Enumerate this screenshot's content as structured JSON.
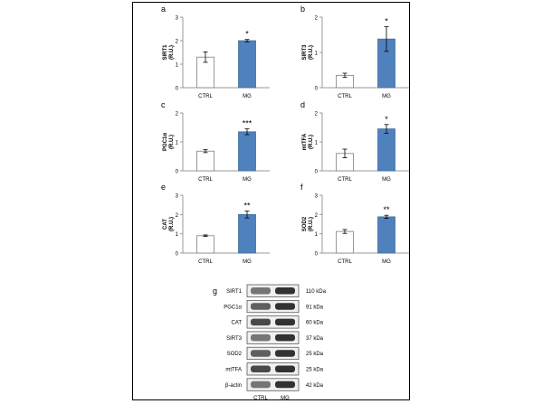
{
  "chart_data": [
    {
      "panel": "a",
      "type": "bar",
      "categories": [
        "CTRL",
        "MG"
      ],
      "values": [
        1.3,
        2.0
      ],
      "errors": [
        0.22,
        0.05
      ],
      "significance": [
        "",
        "*"
      ],
      "ylabel": "SIRT1\n(R.U.)",
      "ylim": [
        0,
        3
      ],
      "yticks": [
        0,
        1,
        2,
        3
      ]
    },
    {
      "panel": "b",
      "type": "bar",
      "categories": [
        "CTRL",
        "MG"
      ],
      "values": [
        0.35,
        1.38
      ],
      "errors": [
        0.06,
        0.35
      ],
      "significance": [
        "",
        "*"
      ],
      "ylabel": "SIRT3\n(R.U.)",
      "ylim": [
        0,
        2
      ],
      "yticks": [
        0,
        1,
        2
      ]
    },
    {
      "panel": "c",
      "type": "bar",
      "categories": [
        "CTRL",
        "MG"
      ],
      "values": [
        0.68,
        1.35
      ],
      "errors": [
        0.05,
        0.1
      ],
      "significance": [
        "",
        "***"
      ],
      "ylabel": "PGC1α\n(R.U.)",
      "ylim": [
        0,
        2
      ],
      "yticks": [
        0,
        1,
        2
      ]
    },
    {
      "panel": "d",
      "type": "bar",
      "categories": [
        "CTRL",
        "MG"
      ],
      "values": [
        0.6,
        1.45
      ],
      "errors": [
        0.15,
        0.15
      ],
      "significance": [
        "",
        "*"
      ],
      "ylabel": "mtTFA\n(R.U.)",
      "ylim": [
        0,
        2
      ],
      "yticks": [
        0,
        1,
        2
      ]
    },
    {
      "panel": "e",
      "type": "bar",
      "categories": [
        "CTRL",
        "MG"
      ],
      "values": [
        0.9,
        2.0
      ],
      "errors": [
        0.04,
        0.18
      ],
      "significance": [
        "",
        "**"
      ],
      "ylabel": "CAT\n(R.U.)",
      "ylim": [
        0,
        3
      ],
      "yticks": [
        0,
        1,
        2,
        3
      ]
    },
    {
      "panel": "f",
      "type": "bar",
      "categories": [
        "CTRL",
        "MG"
      ],
      "values": [
        1.12,
        1.88
      ],
      "errors": [
        0.1,
        0.08
      ],
      "significance": [
        "",
        "**"
      ],
      "ylabel": "SOD2\n(R.U.)",
      "ylim": [
        0,
        3
      ],
      "yticks": [
        0,
        1,
        2,
        3
      ]
    }
  ],
  "blot": {
    "panel": "g",
    "rows": [
      {
        "protein": "SIRT1",
        "size": "110 kDa"
      },
      {
        "protein": "PGC1α",
        "size": "91 kDa"
      },
      {
        "protein": "CAT",
        "size": "60 kDa"
      },
      {
        "protein": "SIRT3",
        "size": "37 kDa"
      },
      {
        "protein": "SOD2",
        "size": "25 kDa"
      },
      {
        "protein": "mtTFA",
        "size": "25 kDa"
      },
      {
        "protein": "β-actin",
        "size": "42 kDa"
      }
    ],
    "lanes": [
      "CTRL",
      "MG"
    ]
  },
  "colors": {
    "ctrl_fill": "#ffffff",
    "mg_fill": "#4f81bd",
    "bar_stroke": "#41719c",
    "axis": "#999999",
    "text": "#000000"
  }
}
